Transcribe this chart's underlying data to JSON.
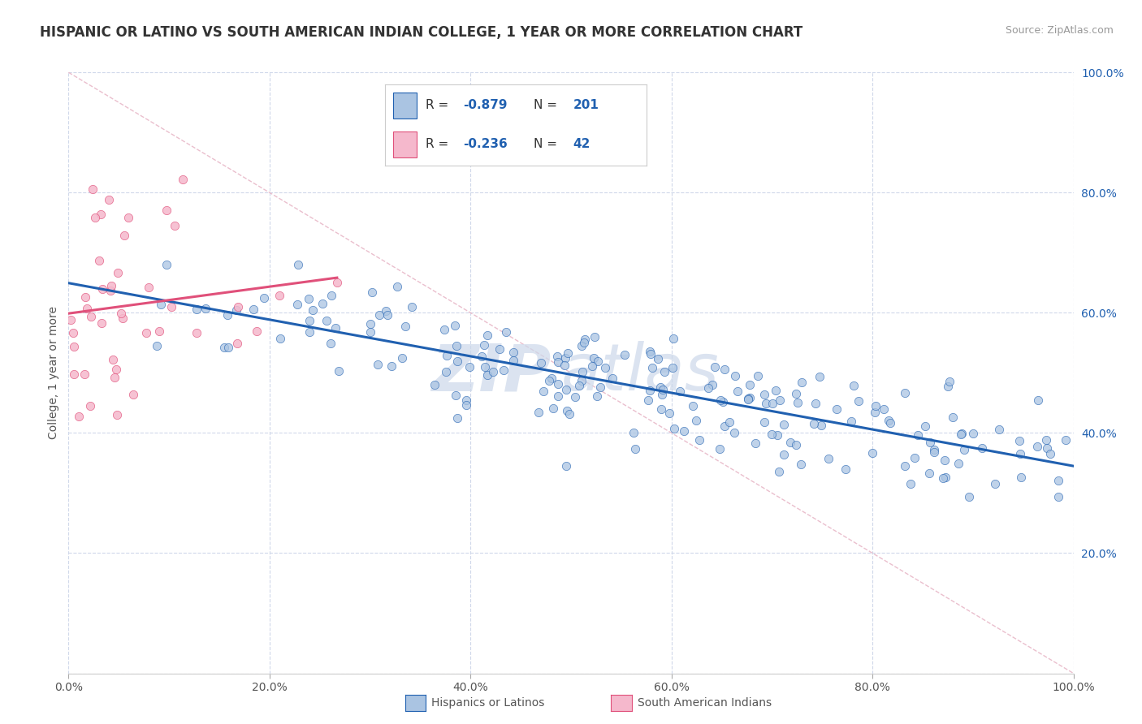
{
  "title": "HISPANIC OR LATINO VS SOUTH AMERICAN INDIAN COLLEGE, 1 YEAR OR MORE CORRELATION CHART",
  "source": "Source: ZipAtlas.com",
  "ylabel": "College, 1 year or more",
  "xlim": [
    0.0,
    1.0
  ],
  "ylim": [
    0.0,
    1.0
  ],
  "xtick_vals": [
    0.0,
    0.2,
    0.4,
    0.6,
    0.8,
    1.0
  ],
  "ytick_vals": [
    0.0,
    0.2,
    0.4,
    0.6,
    0.8,
    1.0
  ],
  "blue_scatter_color": "#aac4e2",
  "blue_line_color": "#2060b0",
  "pink_scatter_color": "#f5b8cc",
  "pink_line_color": "#e0507a",
  "dashed_line_color": "#e8b8c8",
  "R_blue": -0.879,
  "N_blue": 201,
  "R_pink": -0.236,
  "N_pink": 42,
  "watermark_zip": "ZIP",
  "watermark_atlas": "atlas",
  "watermark_color": "#ccd8ea",
  "title_fontsize": 12,
  "axis_label_fontsize": 10,
  "tick_fontsize": 10,
  "source_fontsize": 9,
  "blue_scatter_seed": 42,
  "pink_scatter_seed": 7,
  "background_color": "#ffffff",
  "grid_color": "#d0d8ea",
  "ytick_color": "#2060b0",
  "xtick_color": "#555555"
}
